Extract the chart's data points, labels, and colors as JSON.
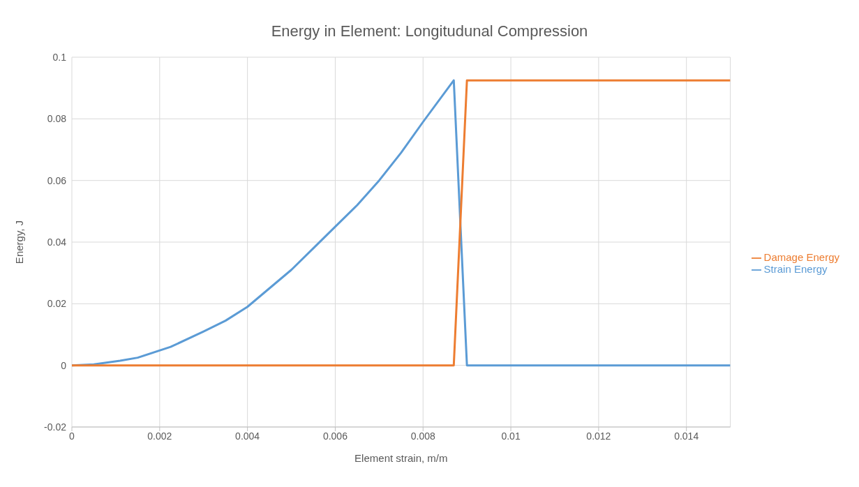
{
  "chart_data": {
    "type": "line",
    "title": "Energy in Element: Longitudunal Compression",
    "xlabel": "Element strain, m/m",
    "ylabel": "Energy, J",
    "xlim": [
      0,
      0.015
    ],
    "xticks": [
      0,
      0.002,
      0.004,
      0.006,
      0.008,
      0.01,
      0.012,
      0.014
    ],
    "ylim": [
      -0.02,
      0.1
    ],
    "yticks": [
      -0.02,
      0,
      0.02,
      0.04,
      0.06,
      0.08,
      0.1
    ],
    "grid": true,
    "legend": "right",
    "marker": "none",
    "line_style": "solid",
    "series": [
      {
        "name": "Strain Energy",
        "color": "#5b9bd5",
        "x": [
          0,
          0.0005,
          0.0011,
          0.0015,
          0.00225,
          0.003,
          0.0035,
          0.004,
          0.0045,
          0.005,
          0.0055,
          0.006,
          0.0065,
          0.007,
          0.0075,
          0.008,
          0.0087,
          0.009,
          0.015
        ],
        "values": [
          0,
          0.0003,
          0.0015,
          0.0025,
          0.006,
          0.011,
          0.0145,
          0.019,
          0.025,
          0.031,
          0.038,
          0.045,
          0.052,
          0.06,
          0.069,
          0.079,
          0.0925,
          0,
          0
        ]
      },
      {
        "name": "Damage Energy",
        "color": "#ed7d31",
        "x": [
          0,
          0.0087,
          0.009,
          0.015
        ],
        "values": [
          0,
          0,
          0.0925,
          0.0925
        ]
      }
    ]
  }
}
